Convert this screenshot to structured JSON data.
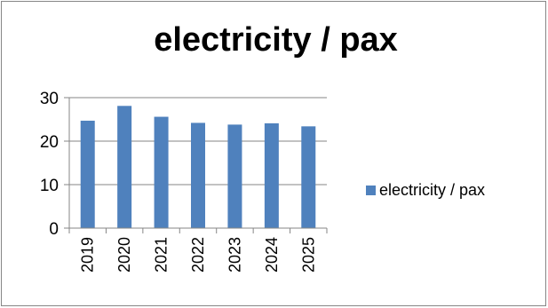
{
  "chart_data": {
    "type": "bar",
    "title": "electricity / pax",
    "xlabel": "",
    "ylabel": "",
    "categories": [
      "2019",
      "2020",
      "2021",
      "2022",
      "2023",
      "2024",
      "2025"
    ],
    "series": [
      {
        "name": "electricity / pax",
        "values": [
          24.7,
          28.1,
          25.6,
          24.2,
          23.8,
          24.1,
          23.4
        ]
      }
    ],
    "ylim": [
      0,
      30
    ],
    "yticks": [
      "0",
      "10",
      "20",
      "30"
    ],
    "grid": true,
    "legend_position": "right",
    "colors": {
      "bar": "#4f81bd",
      "gridline": "#868686",
      "axis": "#868686"
    }
  }
}
